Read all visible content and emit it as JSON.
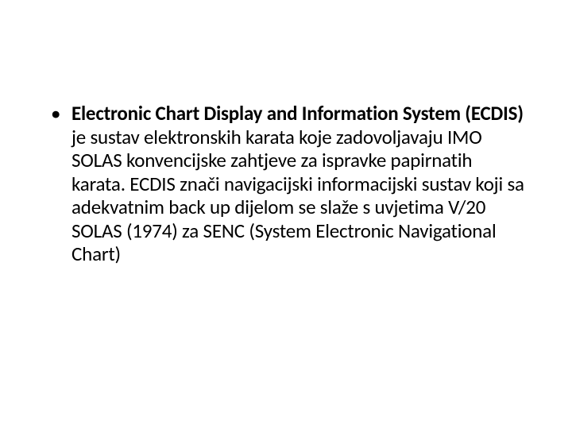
{
  "slide": {
    "background_color": "#ffffff",
    "text_color": "#000000",
    "font_family": "Calibri",
    "bullet": {
      "bold_lead": "Electronic Chart Display and Information System (ECDIS) ",
      "rest": "je sustav elektronskih karata koje zadovoljavaju IMO SOLAS konvencijske zahtjeve za ispravke papirnatih karata. ECDIS znači navigacijski informacijski sustav koji sa adekvatnim back up dijelom se slaže s uvjetima V/20 SOLAS (1974) za SENC (System Electronic Navigational Chart)",
      "font_size_pt": 25,
      "line_height": 1.18,
      "bullet_glyph": "•"
    }
  }
}
